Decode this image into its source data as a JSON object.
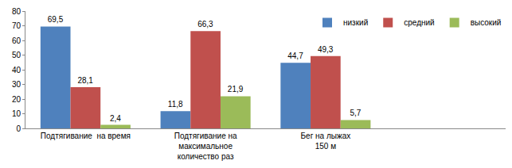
{
  "chart_data": {
    "type": "bar",
    "categories": [
      "Подтягивание  на время",
      "Подтягивание на\nмаксимальное\nколичество раз",
      "Бег на лыжах\n150 м",
      null
    ],
    "series": [
      {
        "name": "низкий",
        "color": "#4F81BD",
        "values": [
          69.5,
          11.8,
          44.7,
          null
        ],
        "value_labels": [
          "69,5",
          "11,8",
          "44,7",
          null
        ]
      },
      {
        "name": "средний",
        "color": "#C0504D",
        "values": [
          28.1,
          66.3,
          49.3,
          null
        ],
        "value_labels": [
          "28,1",
          "66,3",
          "49,3",
          null
        ]
      },
      {
        "name": "высокий",
        "color": "#9BBB59",
        "values": [
          2.4,
          21.9,
          5.7,
          null
        ],
        "value_labels": [
          "2,4",
          "21,9",
          "5,7",
          null
        ]
      }
    ],
    "ylim": [
      0,
      80
    ],
    "yticks": [
      0,
      10,
      20,
      30,
      40,
      50,
      60,
      70,
      80
    ],
    "data_labels": true,
    "grid": false,
    "legend": "top right"
  }
}
